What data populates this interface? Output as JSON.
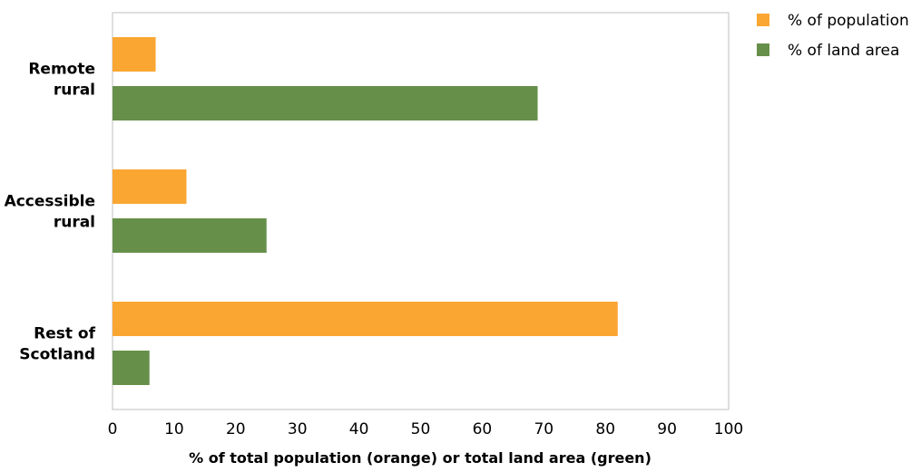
{
  "chart_data": {
    "type": "bar",
    "orientation": "horizontal",
    "categories": [
      "Remote rural",
      "Accessible rural",
      "Rest of Scotland"
    ],
    "category_label_lines": [
      [
        "Remote",
        "rural"
      ],
      [
        "Accessible",
        "rural"
      ],
      [
        "Rest of",
        "Scotland"
      ]
    ],
    "series": [
      {
        "name": "% of population",
        "color": "#faa632",
        "values": [
          7,
          12,
          82
        ]
      },
      {
        "name": "% of land area",
        "color": "#66904a",
        "values": [
          69,
          25,
          6
        ]
      }
    ],
    "xlabel": "% of total population (orange) or total land area (green)",
    "ylabel": "",
    "xlim": [
      0,
      100
    ],
    "xticks": [
      0,
      10,
      20,
      30,
      40,
      50,
      60,
      70,
      80,
      90,
      100
    ],
    "grid": false,
    "legend_position": "top-right"
  }
}
